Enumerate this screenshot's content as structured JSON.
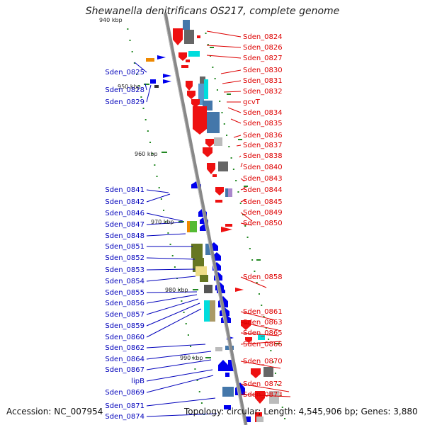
{
  "title": "Shewanella denitrificans OS217, complete genome",
  "footer": {
    "accession": "Accession: NC_007954",
    "stats": "Topology: circular; Length: 4,545,906 bp; Genes: 3,880"
  },
  "colors": {
    "backbone": "#888888",
    "right_label": "#dd0000",
    "left_label": "#0000bb",
    "tick": "#228822"
  },
  "kbp_labels": [
    "940 kbp",
    "950 kbp",
    "960 kbp",
    "970 kbp",
    "980 kbp",
    "990 kbp"
  ],
  "right_genes": [
    "Sden_0824",
    "Sden_0826",
    "Sden_0827",
    "Sden_0830",
    "Sden_0831",
    "Sden_0832",
    "gcvT",
    "Sden_0834",
    "Sden_0835",
    "Sden_0836",
    "Sden_0837",
    "Sden_0838",
    "Sden_0840",
    "Sden_0843",
    "Sden_0844",
    "Sden_0845",
    "Sden_0849",
    "Sden_0850",
    "Sden_0858",
    "Sden_0861",
    "Sden_0863",
    "Sden_0865",
    "Sden_0866",
    "Sden_0870",
    "Sden_0872",
    "Sden_0873"
  ],
  "left_genes": [
    "Sden_0825",
    "Sden_0828",
    "Sden_0829",
    "Sden_0841",
    "Sden_0842",
    "Sden_0846",
    "Sden_0847",
    "Sden_0848",
    "Sden_0851",
    "Sden_0852",
    "Sden_0853",
    "Sden_0854",
    "Sden_0855",
    "Sden_0856",
    "Sden_0857",
    "Sden_0859",
    "Sden_0860",
    "Sden_0862",
    "Sden_0864",
    "Sden_0867",
    "lipB",
    "Sden_0869",
    "Sden_0871",
    "Sden_0874"
  ]
}
